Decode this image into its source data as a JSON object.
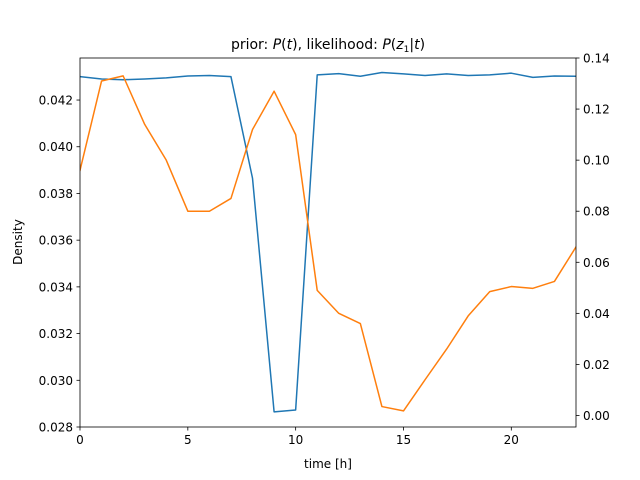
{
  "chart_data": {
    "type": "line",
    "title_parts": {
      "a": "prior: ",
      "b": "P",
      "c": "(",
      "d": "t",
      "e": "), likelihood: ",
      "f": "P",
      "g": "(",
      "h": "z",
      "i": "1",
      "j": "|",
      "k": "t",
      "l": ")"
    },
    "xlabel": "time [h]",
    "ylabel_left": "Density",
    "ylabel_right": "",
    "xlim": [
      0,
      23
    ],
    "ylim_left": [
      0.028,
      0.0438
    ],
    "ylim_right": [
      -0.0045,
      0.14
    ],
    "x_ticks": [
      0,
      5,
      10,
      15,
      20
    ],
    "y_ticks_left": [
      0.028,
      0.03,
      0.032,
      0.034,
      0.036,
      0.038,
      0.04,
      0.042
    ],
    "y_ticks_left_labels": [
      "0.028",
      "0.030",
      "0.032",
      "0.034",
      "0.036",
      "0.038",
      "0.040",
      "0.042"
    ],
    "y_ticks_right": [
      0.0,
      0.02,
      0.04,
      0.06,
      0.08,
      0.1,
      0.12,
      0.14
    ],
    "y_ticks_right_labels": [
      "0.00",
      "0.02",
      "0.04",
      "0.06",
      "0.08",
      "0.10",
      "0.12",
      "0.14"
    ],
    "grid": false,
    "x": [
      0,
      1,
      2,
      3,
      4,
      5,
      6,
      7,
      8,
      9,
      10,
      11,
      12,
      13,
      14,
      15,
      16,
      17,
      18,
      19,
      20,
      21,
      22,
      23
    ],
    "series": [
      {
        "axis": "left",
        "color": "#1f77b4",
        "values": [
          0.043,
          0.0429,
          0.04287,
          0.0429,
          0.04295,
          0.04303,
          0.04305,
          0.043,
          0.03865,
          0.02865,
          0.02873,
          0.04308,
          0.04313,
          0.04302,
          0.04318,
          0.04312,
          0.04305,
          0.04312,
          0.04305,
          0.04308,
          0.04315,
          0.04297,
          0.04303,
          0.04302
        ]
      },
      {
        "axis": "right",
        "color": "#ff7f0e",
        "values": [
          0.096,
          0.131,
          0.133,
          0.114,
          0.1,
          0.08,
          0.08,
          0.085,
          0.112,
          0.127,
          0.11,
          0.049,
          0.04,
          0.036,
          0.0035,
          0.0018,
          0.014,
          0.026,
          0.039,
          0.0485,
          0.0505,
          0.0498,
          0.0525,
          0.066
        ]
      }
    ]
  }
}
